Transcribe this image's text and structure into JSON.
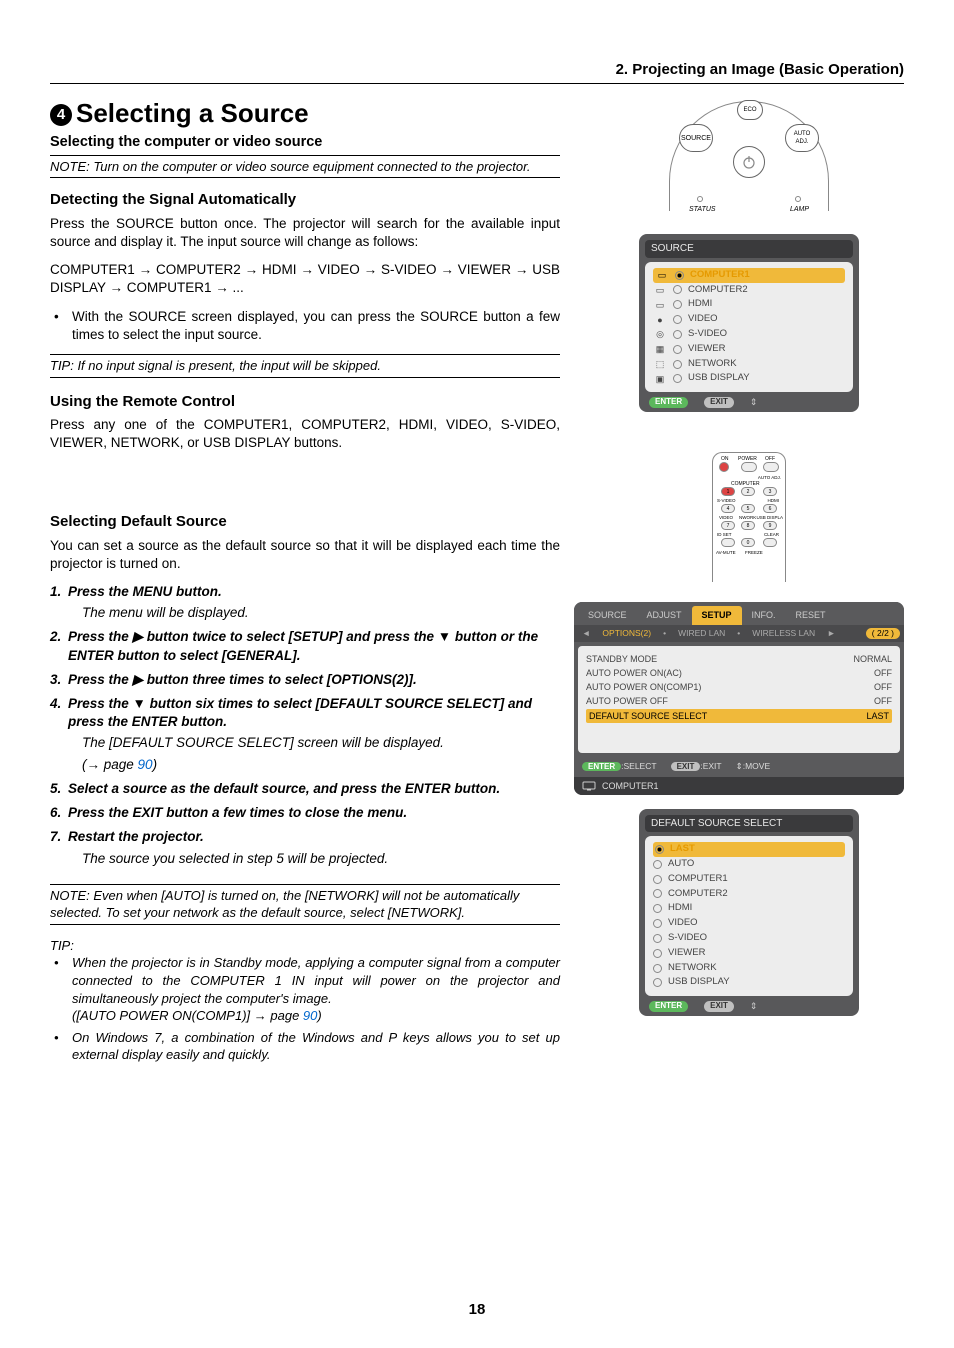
{
  "chapter_heading": "2. Projecting an Image (Basic Operation)",
  "section": {
    "number": "4",
    "title": "Selecting a Source"
  },
  "sub1": "Selecting the computer or video source",
  "note1": "NOTE: Turn on the computer or video source equipment connected to the projector.",
  "detect": {
    "heading": "Detecting the Signal Automatically",
    "p1": "Press the SOURCE button once. The projector will search for the available input source and display it. The input source will change as follows:",
    "seq": "COMPUTER1 → COMPUTER2 → HDMI → VIDEO → S-VIDEO → VIEWER → USB DISPLAY → COMPUTER1 → ...",
    "bullet": "With the SOURCE screen displayed, you can press the SOURCE button a few times to select the input source."
  },
  "tip1": "TIP: If no input signal is present, the input will be skipped.",
  "remote": {
    "heading": "Using the Remote Control",
    "p1": "Press any one of the COMPUTER1, COMPUTER2, HDMI, VIDEO, S-VIDEO, VIEWER, NETWORK, or USB DISPLAY buttons."
  },
  "default": {
    "heading": "Selecting Default Source",
    "p1": "You can set a source as the default source so that it will be displayed each time the projector is turned on.",
    "steps": {
      "s1": "Press the MENU button.",
      "s1b": "The menu will be displayed.",
      "s2a": "Press the ",
      "s2b": " button twice to select [SETUP] and press the ",
      "s2c": " button or the ENTER button to select [GENERAL].",
      "s3a": "Press the ",
      "s3b": " button three times to select [OPTIONS(2)].",
      "s4a": "Press the ",
      "s4b": " button six times to select [DEFAULT SOURCE SELECT] and press the ENTER button.",
      "s4body1": "The [DEFAULT SOURCE SELECT] screen will be displayed.",
      "s4body2a": "(→ page ",
      "s4body2b": "90",
      "s4body2c": ")",
      "s5": "Select a source as the default source, and press the ENTER button.",
      "s6": "Press the EXIT button a few times to close the menu.",
      "s7": "Restart the projector.",
      "s7b": "The source you selected in step 5 will be projected."
    }
  },
  "note2": "NOTE: Even when [AUTO] is turned on, the [NETWORK] will not be automatically selected. To set your network as the default source, select [NETWORK].",
  "tip2": {
    "label": "TIP:",
    "b1a": "When the projector is in Standby mode, applying a computer signal from a computer connected to the COMPUTER 1 IN input will power on the projector and simultaneously project the computer's image.",
    "b1b_a": "([AUTO POWER ON(COMP1)] → page ",
    "b1b_b": "90",
    "b1b_c": ")",
    "b2": "On Windows 7, a combination of the Windows and P keys allows you to set up external display easily and quickly."
  },
  "page_number": "18",
  "projector_top": {
    "source": "SOURCE",
    "eco": "ECO",
    "auto": "AUTO\nADJ.",
    "status": "STATUS",
    "lamp": "LAMP"
  },
  "osd_source": {
    "title": "SOURCE",
    "items": [
      {
        "label": "COMPUTER1",
        "selected": true
      },
      {
        "label": "COMPUTER2",
        "selected": false
      },
      {
        "label": "HDMI",
        "selected": false
      },
      {
        "label": "VIDEO",
        "selected": false
      },
      {
        "label": "S-VIDEO",
        "selected": false
      },
      {
        "label": "VIEWER",
        "selected": false
      },
      {
        "label": "NETWORK",
        "selected": false
      },
      {
        "label": "USB DISPLAY",
        "selected": false
      }
    ],
    "foot_enter": "ENTER",
    "foot_exit": "EXIT",
    "foot_move": "⇕"
  },
  "osd_setup": {
    "tabs": [
      "SOURCE",
      "ADJUST",
      "SETUP",
      "INFO.",
      "RESET"
    ],
    "active_tab": "SETUP",
    "subtabs": [
      "◄",
      "OPTIONS(2)",
      "•",
      "WIRED LAN",
      "•",
      "WIRELESS LAN",
      "►"
    ],
    "active_sub": "OPTIONS(2)",
    "page_ind": "( 2/2 )",
    "rows": [
      {
        "k": "STANDBY MODE",
        "v": "NORMAL"
      },
      {
        "k": "AUTO POWER ON(AC)",
        "v": "OFF"
      },
      {
        "k": "AUTO POWER ON(COMP1)",
        "v": "OFF"
      },
      {
        "k": "AUTO POWER OFF",
        "v": "OFF"
      },
      {
        "k": "DEFAULT SOURCE SELECT",
        "v": "LAST",
        "sel": true
      }
    ],
    "foot": {
      "enter": "ENTER",
      "select": ":SELECT",
      "exit": "EXIT",
      "exitl": ":EXIT",
      "move": "⇕:MOVE"
    },
    "status": "COMPUTER1"
  },
  "osd_dss": {
    "title": "DEFAULT SOURCE SELECT",
    "items": [
      {
        "label": "LAST",
        "selected": true
      },
      {
        "label": "AUTO",
        "selected": false
      },
      {
        "label": "COMPUTER1",
        "selected": false
      },
      {
        "label": "COMPUTER2",
        "selected": false
      },
      {
        "label": "HDMI",
        "selected": false
      },
      {
        "label": "VIDEO",
        "selected": false
      },
      {
        "label": "S-VIDEO",
        "selected": false
      },
      {
        "label": "VIEWER",
        "selected": false
      },
      {
        "label": "NETWORK",
        "selected": false
      },
      {
        "label": "USB DISPLAY",
        "selected": false
      }
    ]
  },
  "remote_labels": {
    "on": "ON",
    "power": "POWER",
    "off": "OFF",
    "auto": "AUTO ADJ.",
    "computer": "COMPUTER",
    "svideo": "S-VIDEO",
    "hdmi": "HDMI",
    "video": "VIDEO",
    "viewer": "VIEWER",
    "network": "NETWORK",
    "usb": "USB DISPLA",
    "idset": "ID SET",
    "clear": "CLEAR",
    "avmute": "AV-MUTE",
    "freeze": "FREEZE"
  },
  "colors": {
    "highlight": "#f0b93a",
    "panel_bg": "#58585a",
    "panel_inner": "#ededed",
    "link": "#0066cc"
  }
}
